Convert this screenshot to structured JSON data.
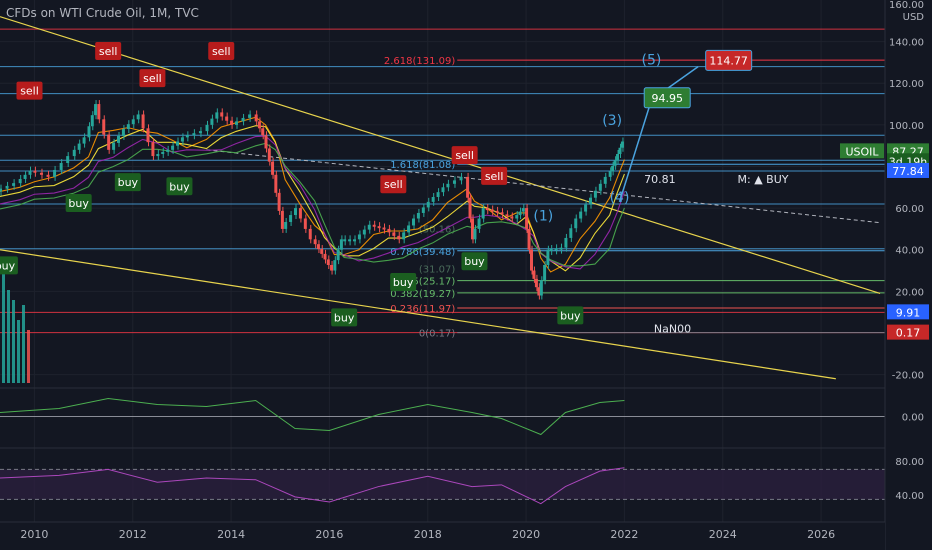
{
  "header": {
    "title": "CFDs on WTI Crude Oil, 1M, TVC"
  },
  "axis": {
    "currency": "USD",
    "top_label": "160.00"
  },
  "colors": {
    "bg": "#131722",
    "price": "#26a69a",
    "down": "#ef5350",
    "yellow": "#e8d44d",
    "red_line": "#f23645",
    "blue_line": "#4aa3df",
    "purple": "#9c27b0",
    "green_label": "#1b5e20"
  },
  "chart_data": {
    "type": "line",
    "title": "CFDs on WTI Crude Oil, 1M, TVC",
    "x_axis": {
      "ticks": [
        "2010",
        "2012",
        "2014",
        "2016",
        "2018",
        "2020",
        "2022",
        "2024",
        "2026"
      ],
      "range": [
        2009.3,
        2027.3
      ]
    },
    "y_axis": {
      "ticks": [
        140,
        120,
        100,
        80,
        60,
        40,
        20,
        -20
      ],
      "range": [
        -25,
        160
      ]
    },
    "price_series": {
      "name": "USOIL",
      "x": [
        2009.3,
        2009.7,
        2010.0,
        2010.4,
        2010.8,
        2011.1,
        2011.3,
        2011.6,
        2011.9,
        2012.2,
        2012.5,
        2012.8,
        2013.1,
        2013.5,
        2013.8,
        2014.1,
        2014.5,
        2014.7,
        2014.9,
        2015.1,
        2015.4,
        2015.7,
        2015.9,
        2016.1,
        2016.3,
        2016.6,
        2016.9,
        2017.2,
        2017.5,
        2017.8,
        2018.1,
        2018.4,
        2018.8,
        2018.95,
        2019.2,
        2019.5,
        2019.8,
        2020.0,
        2020.15,
        2020.3,
        2020.5,
        2020.8,
        2021.1,
        2021.4,
        2021.7,
        2021.85,
        2022.0
      ],
      "y": [
        68,
        72,
        78,
        75,
        85,
        94,
        110,
        88,
        98,
        105,
        85,
        88,
        94,
        97,
        106,
        100,
        105,
        95,
        76,
        50,
        60,
        45,
        38,
        30,
        45,
        45,
        52,
        50,
        45,
        55,
        63,
        70,
        75,
        45,
        60,
        58,
        55,
        60,
        30,
        18,
        40,
        41,
        55,
        65,
        75,
        83,
        92
      ]
    },
    "fib_levels": [
      {
        "label": "2.618(131.09)",
        "value": 131.09
      },
      {
        "label": "1.618(81.08)",
        "value": 81.08
      },
      {
        "label": "0.786(39.48)",
        "value": 39.48
      },
      {
        "label": "0.5(25.17)",
        "value": 25.17
      },
      {
        "label": "0.382(19.27)",
        "value": 19.27
      },
      {
        "label": "0.236(11.97)",
        "value": 11.97
      },
      {
        "label": "0(0.17)",
        "value": 0.17
      }
    ],
    "fib_faint": [
      {
        "label": "(50.16)",
        "value": 50.16
      },
      {
        "label": "(31.07)",
        "value": 31.07
      }
    ],
    "horizontal_lines": [
      146,
      128,
      115,
      95,
      83,
      77.84,
      62,
      40.5,
      9.91,
      0.17
    ],
    "signals": [
      {
        "text": "sell",
        "x": 2009.9,
        "y": 116,
        "kind": "sell"
      },
      {
        "text": "sell",
        "x": 2011.5,
        "y": 135,
        "kind": "sell"
      },
      {
        "text": "sell",
        "x": 2012.4,
        "y": 122,
        "kind": "sell"
      },
      {
        "text": "sell",
        "x": 2013.8,
        "y": 135,
        "kind": "sell"
      },
      {
        "text": "sell",
        "x": 2018.75,
        "y": 85,
        "kind": "sell"
      },
      {
        "text": "sell",
        "x": 2017.3,
        "y": 71,
        "kind": "sell"
      },
      {
        "text": "sell",
        "x": 2019.35,
        "y": 75,
        "kind": "sell"
      },
      {
        "text": "buy",
        "x": 2011.9,
        "y": 72,
        "kind": "buy"
      },
      {
        "text": "buy",
        "x": 2012.95,
        "y": 70,
        "kind": "buy"
      },
      {
        "text": "buy",
        "x": 2010.9,
        "y": 62,
        "kind": "buy"
      },
      {
        "text": "buy",
        "x": 2009.4,
        "y": 32,
        "kind": "buy"
      },
      {
        "text": "buy",
        "x": 2016.3,
        "y": 7,
        "kind": "buy"
      },
      {
        "text": "buy",
        "x": 2017.5,
        "y": 24,
        "kind": "buy"
      },
      {
        "text": "buy",
        "x": 2018.95,
        "y": 34,
        "kind": "buy"
      },
      {
        "text": "buy",
        "x": 2020.9,
        "y": 8,
        "kind": "buy"
      }
    ],
    "wave_labels": [
      {
        "text": "(1)",
        "x": 2020.35,
        "y": 54
      },
      {
        "text": "(3)",
        "x": 2021.75,
        "y": 100
      },
      {
        "text": "(4)",
        "x": 2021.9,
        "y": 63
      },
      {
        "text": "(5)",
        "x": 2022.55,
        "y": 129
      }
    ],
    "targets": [
      {
        "text": "94.95",
        "value": 94.95,
        "x": 2022.85,
        "y": 113,
        "kind": "green"
      },
      {
        "text": "114.77",
        "value": 114.77,
        "x": 2024.1,
        "y": 131,
        "kind": "red"
      }
    ],
    "annotations": [
      {
        "text": "70.81",
        "x": 2022.4,
        "y": 72
      },
      {
        "text": "M: ▲ BUY",
        "x": 2024.3,
        "y": 72
      },
      {
        "text": "NaN00",
        "x": 2022.6,
        "y": 0.2
      }
    ],
    "price_tags": [
      {
        "text": "USOIL",
        "value": 87.27,
        "kind": "green_name"
      },
      {
        "text": "87.27",
        "value": 87.27,
        "kind": "green"
      },
      {
        "text": "3d 19h",
        "value": 82.5,
        "kind": "green_sub"
      },
      {
        "text": "77.84",
        "value": 77.84,
        "kind": "blue"
      },
      {
        "text": "9.91",
        "value": 9.91,
        "kind": "blue"
      },
      {
        "text": "0.17",
        "value": 0.17,
        "kind": "red"
      }
    ],
    "oscillator1": {
      "ticks": [
        0.0
      ],
      "x": [
        2009.3,
        2010.5,
        2011.5,
        2012.5,
        2013.5,
        2014.5,
        2015.3,
        2016.0,
        2017.0,
        2018.0,
        2018.9,
        2019.5,
        2020.3,
        2020.8,
        2021.5,
        2022.0
      ],
      "y": [
        0.2,
        0.4,
        0.9,
        0.6,
        0.5,
        0.8,
        -0.6,
        -0.7,
        0.1,
        0.6,
        0.2,
        -0.1,
        -0.9,
        0.2,
        0.7,
        0.8
      ]
    },
    "oscillator2": {
      "ticks": [
        80.0,
        40.0
      ],
      "x": [
        2009.3,
        2010.5,
        2011.5,
        2012.5,
        2013.5,
        2014.5,
        2015.3,
        2016.0,
        2017.0,
        2018.0,
        2018.9,
        2019.5,
        2020.3,
        2020.8,
        2021.5,
        2022.0
      ],
      "y": [
        60,
        63,
        70,
        55,
        60,
        58,
        38,
        32,
        50,
        62,
        50,
        52,
        30,
        50,
        68,
        72
      ]
    }
  }
}
